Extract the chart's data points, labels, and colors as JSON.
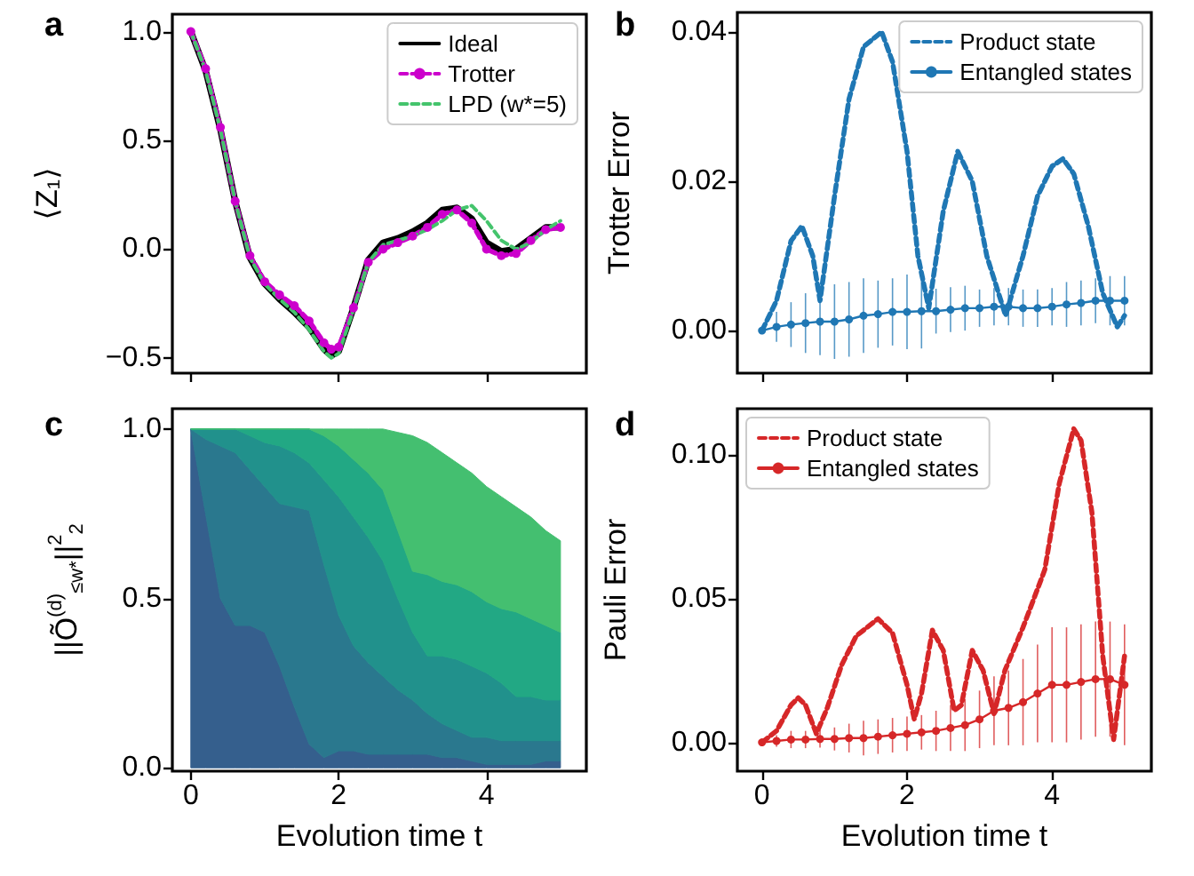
{
  "chart_data": [
    {
      "type": "line",
      "title": "a",
      "ylabel": "⟨Z₁⟩",
      "legend": "top right",
      "tick_labels": "y",
      "xlim": [
        -0.25,
        5.35
      ],
      "xticks": [
        {
          "value": 0,
          "label": null
        },
        {
          "value": 2,
          "label": null
        },
        {
          "value": 4,
          "label": null
        }
      ],
      "ylim": [
        -0.57,
        1.08
      ],
      "yticks": [
        {
          "value": -0.5,
          "label": "−0.5"
        },
        {
          "value": 0,
          "label": "0.0"
        },
        {
          "value": 0.5,
          "label": "0.5"
        },
        {
          "value": 1,
          "label": "1.0"
        }
      ],
      "x": [
        0,
        0.2,
        0.4,
        0.6,
        0.8,
        1.0,
        1.2,
        1.4,
        1.6,
        1.8,
        1.9,
        2.0,
        2.2,
        2.4,
        2.6,
        2.8,
        3.0,
        3.2,
        3.4,
        3.6,
        3.8,
        4.0,
        4.2,
        4.4,
        4.6,
        4.8,
        5.0
      ],
      "series": [
        {
          "name": "Ideal",
          "color": "#000000",
          "line_style": "solid",
          "marker": "none",
          "values": [
            1.0,
            0.82,
            0.55,
            0.22,
            -0.04,
            -0.16,
            -0.23,
            -0.29,
            -0.36,
            -0.46,
            -0.49,
            -0.47,
            -0.27,
            -0.05,
            0.03,
            0.05,
            0.08,
            0.12,
            0.18,
            0.19,
            0.14,
            0.03,
            -0.01,
            0.0,
            0.05,
            0.1,
            0.1
          ]
        },
        {
          "name": "Trotter",
          "color": "#cc00cc",
          "line_style": "dashed",
          "marker": "circle",
          "values": [
            1.0,
            0.83,
            0.56,
            0.22,
            -0.03,
            -0.15,
            -0.21,
            -0.26,
            -0.33,
            -0.43,
            -0.46,
            -0.45,
            -0.27,
            -0.06,
            0.0,
            0.03,
            0.06,
            0.1,
            0.16,
            0.18,
            0.12,
            0.0,
            -0.03,
            -0.02,
            0.04,
            0.09,
            0.1
          ]
        },
        {
          "name": "LPD (w*=5)",
          "color": "#44c46c",
          "line_style": "dashed",
          "marker": "none",
          "values": [
            1.0,
            0.82,
            0.55,
            0.22,
            -0.04,
            -0.16,
            -0.23,
            -0.29,
            -0.37,
            -0.47,
            -0.5,
            -0.48,
            -0.28,
            -0.06,
            0.02,
            0.04,
            0.06,
            0.09,
            0.13,
            0.18,
            0.2,
            0.13,
            0.04,
            0.0,
            0.03,
            0.09,
            0.13
          ]
        }
      ]
    },
    {
      "type": "line",
      "title": "b",
      "ylabel": "Trotter Error",
      "legend": "top right",
      "tick_labels": "y",
      "xlim": [
        -0.34,
        5.37
      ],
      "xticks": [
        {
          "value": 0,
          "label": null
        },
        {
          "value": 2,
          "label": null
        },
        {
          "value": 4,
          "label": null
        }
      ],
      "ylim": [
        -0.0057,
        0.0426
      ],
      "yticks": [
        {
          "value": 0,
          "label": "0.00"
        },
        {
          "value": 0.02,
          "label": "0.02"
        },
        {
          "value": 0.04,
          "label": "0.04"
        }
      ],
      "series": [
        {
          "name": "Product state",
          "color": "#1f77b4",
          "line_style": "dashed",
          "marker": "none",
          "x": [
            0,
            0.2,
            0.4,
            0.55,
            0.7,
            0.8,
            1.0,
            1.2,
            1.4,
            1.65,
            1.8,
            2.0,
            2.15,
            2.3,
            2.5,
            2.7,
            2.9,
            3.1,
            3.36,
            3.6,
            3.8,
            4.0,
            4.15,
            4.3,
            4.5,
            4.7,
            4.9,
            5.0
          ],
          "values": [
            0,
            0.004,
            0.012,
            0.014,
            0.01,
            0.004,
            0.018,
            0.031,
            0.038,
            0.04,
            0.036,
            0.024,
            0.01,
            0.003,
            0.016,
            0.024,
            0.02,
            0.01,
            0.002,
            0.01,
            0.018,
            0.022,
            0.023,
            0.021,
            0.014,
            0.005,
            0.0005,
            0.002
          ]
        },
        {
          "name": "Entangled states",
          "color": "#1f77b4",
          "line_style": "solid",
          "marker": "circle",
          "x": [
            0,
            0.2,
            0.4,
            0.6,
            0.8,
            1.0,
            1.2,
            1.4,
            1.6,
            1.8,
            2.0,
            2.2,
            2.4,
            2.6,
            2.8,
            3.0,
            3.2,
            3.4,
            3.6,
            3.8,
            4.0,
            4.2,
            4.4,
            4.6,
            4.8,
            5.0
          ],
          "values": [
            0,
            0.0005,
            0.0008,
            0.001,
            0.0012,
            0.0012,
            0.0015,
            0.002,
            0.0022,
            0.0025,
            0.0025,
            0.0026,
            0.0026,
            0.0028,
            0.003,
            0.003,
            0.0032,
            0.0032,
            0.003,
            0.003,
            0.0032,
            0.0035,
            0.0037,
            0.004,
            0.004,
            0.004
          ],
          "errors": [
            0,
            0.002,
            0.003,
            0.004,
            0.0045,
            0.005,
            0.005,
            0.005,
            0.0045,
            0.0045,
            0.005,
            0.005,
            0.003,
            0.003,
            0.003,
            0.0025,
            0.0025,
            0.0025,
            0.0025,
            0.0025,
            0.0025,
            0.003,
            0.003,
            0.003,
            0.0033,
            0.0033
          ]
        }
      ]
    },
    {
      "type": "area",
      "stacked": true,
      "title": "c",
      "xlabel": "Evolution time t",
      "ylabel": "||Õ$^{(d)}$$_{≤w*}$||$^{2}$$_{2}$",
      "xlim": [
        -0.25,
        5.35
      ],
      "xticks": [
        0,
        2,
        4
      ],
      "ylim": [
        -0.01,
        1.06
      ],
      "yticks": [
        {
          "value": 0,
          "label": "0.0"
        },
        {
          "value": 0.5,
          "label": "0.5"
        },
        {
          "value": 1,
          "label": "1.0"
        }
      ],
      "x": [
        0,
        0.2,
        0.4,
        0.6,
        0.8,
        1.0,
        1.2,
        1.4,
        1.6,
        1.8,
        2.0,
        2.2,
        2.4,
        2.6,
        2.8,
        3.0,
        3.2,
        3.4,
        3.6,
        3.8,
        4.0,
        4.2,
        4.4,
        4.6,
        4.8,
        5.0
      ],
      "series": [
        {
          "color": "#355f8d",
          "values": [
            1,
            0.75,
            0.5,
            0.42,
            0.42,
            0.4,
            0.3,
            0.18,
            0.07,
            0.03,
            0.05,
            0.05,
            0.04,
            0.04,
            0.04,
            0.04,
            0.04,
            0.03,
            0.03,
            0.02,
            0.01,
            0.01,
            0.01,
            0.01,
            0.02,
            0.02
          ]
        },
        {
          "color": "#2a788e",
          "values": [
            0,
            0.22,
            0.45,
            0.51,
            0.46,
            0.43,
            0.48,
            0.59,
            0.69,
            0.57,
            0.4,
            0.31,
            0.27,
            0.23,
            0.19,
            0.16,
            0.12,
            0.1,
            0.08,
            0.07,
            0.08,
            0.07,
            0.07,
            0.07,
            0.06,
            0.06
          ]
        },
        {
          "color": "#21918c",
          "values": [
            0,
            0.03,
            0.05,
            0.07,
            0.1,
            0.13,
            0.17,
            0.16,
            0.14,
            0.25,
            0.35,
            0.38,
            0.37,
            0.34,
            0.27,
            0.2,
            0.17,
            0.2,
            0.21,
            0.21,
            0.19,
            0.17,
            0.13,
            0.13,
            0.12,
            0.12
          ]
        },
        {
          "color": "#22a884",
          "values": [
            0,
            0,
            0,
            0,
            0.02,
            0.04,
            0.05,
            0.07,
            0.1,
            0.13,
            0.15,
            0.17,
            0.19,
            0.21,
            0.2,
            0.18,
            0.24,
            0.22,
            0.22,
            0.22,
            0.21,
            0.22,
            0.25,
            0.23,
            0.22,
            0.2
          ]
        },
        {
          "color": "#44bf70",
          "values": [
            0,
            0,
            0,
            0,
            0,
            0,
            0,
            0,
            0,
            0.02,
            0.05,
            0.09,
            0.13,
            0.18,
            0.29,
            0.4,
            0.39,
            0.38,
            0.36,
            0.35,
            0.34,
            0.33,
            0.31,
            0.3,
            0.28,
            0.27
          ]
        }
      ]
    },
    {
      "type": "line",
      "title": "d",
      "xlabel": "Evolution time t",
      "ylabel": "Pauli Error",
      "legend": "top left",
      "xlim": [
        -0.34,
        5.37
      ],
      "xticks": [
        0,
        2,
        4
      ],
      "ylim": [
        -0.01,
        0.116
      ],
      "yticks": [
        {
          "value": 0,
          "label": "0.00"
        },
        {
          "value": 0.05,
          "label": "0.05"
        },
        {
          "value": 0.1,
          "label": "0.10"
        }
      ],
      "series": [
        {
          "name": "Product state",
          "color": "#d62728",
          "line_style": "dashed",
          "marker": "none",
          "x": [
            0,
            0.2,
            0.4,
            0.5,
            0.6,
            0.75,
            0.9,
            1.1,
            1.3,
            1.6,
            1.8,
            2.0,
            2.1,
            2.2,
            2.35,
            2.5,
            2.65,
            2.75,
            2.9,
            3.05,
            3.2,
            3.35,
            3.6,
            3.9,
            4.1,
            4.3,
            4.4,
            4.55,
            4.7,
            4.85,
            5.0
          ],
          "values": [
            0,
            0.004,
            0.013,
            0.0155,
            0.013,
            0.003,
            0.012,
            0.027,
            0.037,
            0.043,
            0.038,
            0.02,
            0.008,
            0.017,
            0.039,
            0.032,
            0.011,
            0.013,
            0.032,
            0.025,
            0.01,
            0.025,
            0.04,
            0.06,
            0.09,
            0.109,
            0.105,
            0.08,
            0.03,
            0.001,
            0.03
          ]
        },
        {
          "name": "Entangled states",
          "color": "#d62728",
          "line_style": "solid",
          "marker": "circle",
          "x": [
            0,
            0.2,
            0.4,
            0.6,
            0.8,
            1.0,
            1.2,
            1.4,
            1.6,
            1.8,
            2.0,
            2.2,
            2.4,
            2.6,
            2.8,
            3.0,
            3.2,
            3.4,
            3.6,
            3.8,
            4.0,
            4.2,
            4.4,
            4.6,
            4.8,
            5.0
          ],
          "values": [
            0,
            0.0005,
            0.001,
            0.001,
            0.0012,
            0.0012,
            0.0015,
            0.0015,
            0.002,
            0.0025,
            0.003,
            0.0035,
            0.004,
            0.005,
            0.006,
            0.008,
            0.011,
            0.012,
            0.014,
            0.017,
            0.02,
            0.02,
            0.021,
            0.022,
            0.022,
            0.02
          ],
          "errors": [
            0,
            0.002,
            0.003,
            0.003,
            0.003,
            0.004,
            0.005,
            0.006,
            0.006,
            0.006,
            0.006,
            0.006,
            0.007,
            0.008,
            0.009,
            0.01,
            0.012,
            0.013,
            0.015,
            0.017,
            0.02,
            0.02,
            0.02,
            0.02,
            0.02,
            0.021
          ]
        }
      ]
    }
  ]
}
